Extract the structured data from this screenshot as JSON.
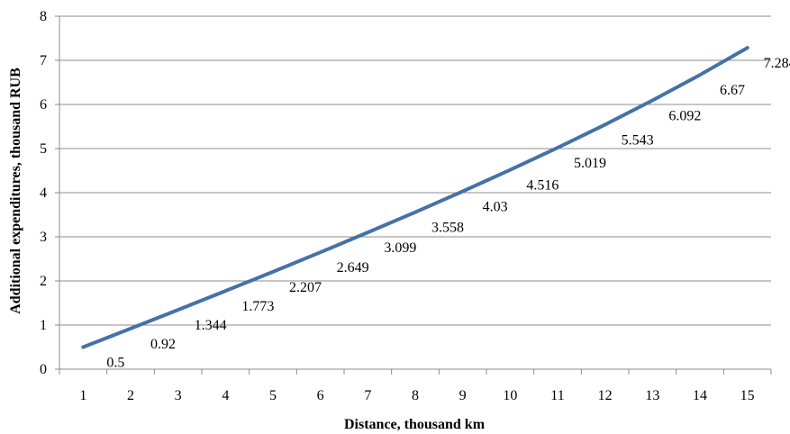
{
  "chart_data": {
    "type": "line",
    "xlabel": "Distance, thousand km",
    "ylabel": "Additional expenditures, thousand RUB",
    "x": [
      1,
      2,
      3,
      4,
      5,
      6,
      7,
      8,
      9,
      10,
      11,
      12,
      13,
      14,
      15
    ],
    "x_tick_labels": [
      "1",
      "2",
      "3",
      "4",
      "5",
      "6",
      "7",
      "8",
      "9",
      "10",
      "11",
      "12",
      "13",
      "14",
      "15"
    ],
    "y_tick_labels": [
      "0",
      "1",
      "2",
      "3",
      "4",
      "5",
      "6",
      "7",
      "8"
    ],
    "ylim": [
      0,
      8
    ],
    "grid": "horizontal",
    "series": [
      {
        "values": [
          0.5,
          0.92,
          1.344,
          1.773,
          2.207,
          2.649,
          3.099,
          3.558,
          4.03,
          4.516,
          5.019,
          5.543,
          6.092,
          6.67,
          7.284
        ],
        "data_labels": [
          "0.5",
          "0.92",
          "1.344",
          "1.773",
          "2.207",
          "2.649",
          "3.099",
          "3.558",
          "4.03",
          "4.516",
          "5.019",
          "5.543",
          "6.092",
          "6.67",
          "7.284"
        ],
        "color": "#4472A8"
      }
    ]
  }
}
